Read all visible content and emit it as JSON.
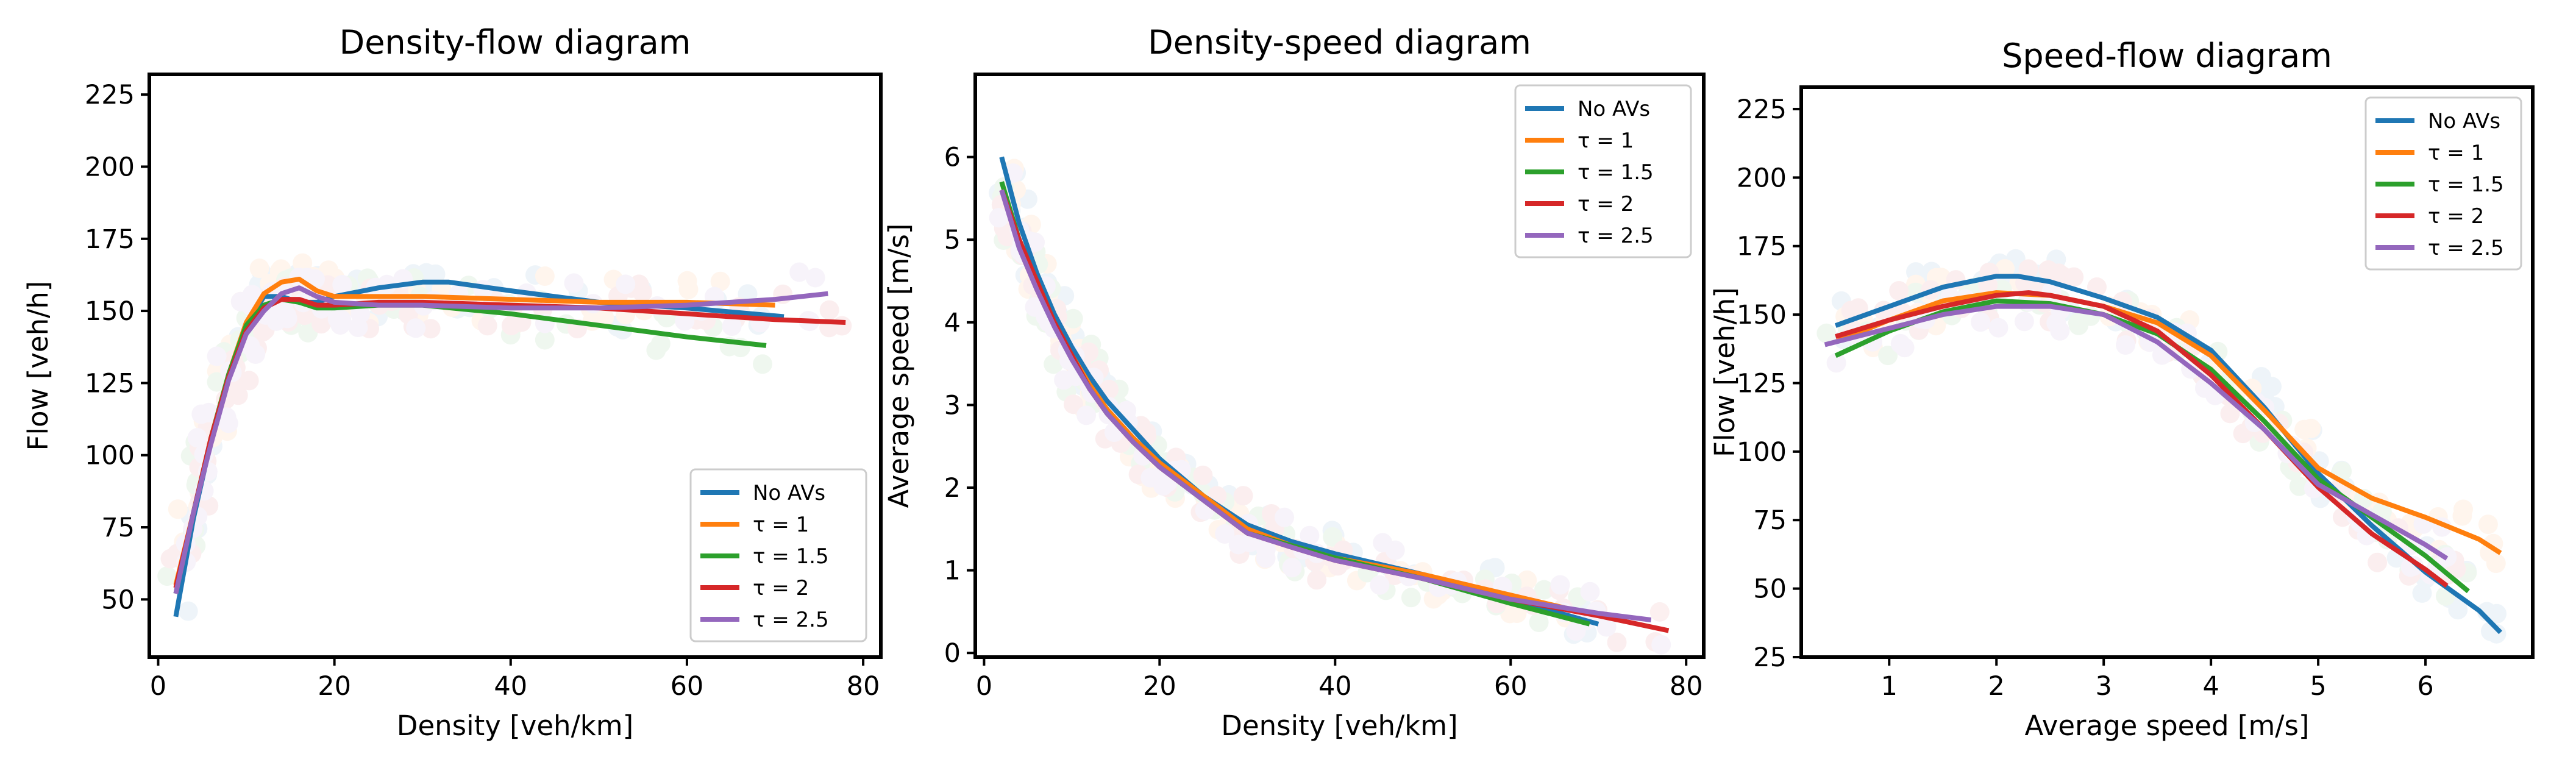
{
  "chart_data": [
    {
      "type": "line",
      "title": "Density-flow diagram",
      "xlabel": "Density [veh/km]",
      "ylabel": "Flow [veh/h]",
      "xlim": [
        -1,
        82
      ],
      "ylim": [
        30,
        232
      ],
      "xticks": [
        0,
        20,
        40,
        60,
        80
      ],
      "yticks": [
        50,
        75,
        100,
        125,
        150,
        175,
        200,
        225
      ],
      "legend_loc": "lower-right",
      "series": [
        {
          "name": "No AVs",
          "color": "#1f77b4",
          "x": [
            2,
            4,
            6,
            8,
            10,
            12,
            14,
            16,
            18,
            20,
            25,
            30,
            33,
            40,
            50,
            60,
            71
          ],
          "y": [
            44,
            78,
            105,
            127,
            145,
            155,
            155,
            153,
            153,
            155,
            158,
            160,
            160,
            157,
            153,
            151,
            148
          ]
        },
        {
          "name": "τ = 1",
          "color": "#ff7f0e",
          "x": [
            2,
            4,
            6,
            8,
            10,
            12,
            14,
            16,
            18,
            20,
            25,
            30,
            40,
            50,
            60,
            70
          ],
          "y": [
            55,
            80,
            106,
            128,
            146,
            156,
            160,
            161,
            157,
            155,
            155,
            155,
            154,
            153,
            153,
            152
          ]
        },
        {
          "name": "τ = 1.5",
          "color": "#2ca02c",
          "x": [
            2,
            4,
            6,
            8,
            10,
            12,
            14,
            16,
            18,
            20,
            25,
            30,
            40,
            50,
            60,
            69
          ],
          "y": [
            52,
            80,
            106,
            128,
            145,
            152,
            154,
            153,
            151,
            151,
            152,
            152,
            149,
            145,
            141,
            138
          ]
        },
        {
          "name": "τ = 2",
          "color": "#d62728",
          "x": [
            2,
            4,
            6,
            8,
            10,
            12,
            14,
            16,
            18,
            20,
            25,
            30,
            40,
            50,
            60,
            70,
            78
          ],
          "y": [
            54,
            80,
            106,
            127,
            143,
            151,
            154,
            154,
            152,
            152,
            153,
            153,
            152,
            151,
            149,
            147,
            146
          ]
        },
        {
          "name": "τ = 2.5",
          "color": "#9467bd",
          "x": [
            2,
            4,
            6,
            8,
            10,
            12,
            14,
            16,
            18,
            20,
            25,
            30,
            40,
            50,
            60,
            70,
            76
          ],
          "y": [
            52,
            80,
            104,
            126,
            142,
            150,
            156,
            158,
            155,
            153,
            152,
            152,
            151,
            151,
            152,
            154,
            156
          ]
        }
      ]
    },
    {
      "type": "line",
      "title": "Density-speed diagram",
      "xlabel": "Density [veh/km]",
      "ylabel": "Average speed [m/s]",
      "xlim": [
        -1,
        82
      ],
      "ylim": [
        -0.05,
        7.0
      ],
      "xticks": [
        0,
        20,
        40,
        60,
        80
      ],
      "yticks": [
        0,
        1,
        2,
        3,
        4,
        5,
        6
      ],
      "legend_loc": "upper-right",
      "series": [
        {
          "name": "No AVs",
          "color": "#1f77b4",
          "x": [
            2,
            4,
            6,
            8,
            10,
            12,
            14,
            17,
            20,
            25,
            30,
            35,
            40,
            50,
            60,
            70
          ],
          "y": [
            6.0,
            5.2,
            4.6,
            4.1,
            3.7,
            3.35,
            3.05,
            2.7,
            2.35,
            1.9,
            1.55,
            1.35,
            1.2,
            0.95,
            0.65,
            0.35
          ]
        },
        {
          "name": "τ = 1",
          "color": "#ff7f0e",
          "x": [
            2,
            4,
            6,
            8,
            10,
            12,
            14,
            17,
            20,
            25,
            30,
            35,
            40,
            50,
            60,
            70
          ],
          "y": [
            5.6,
            5.0,
            4.5,
            4.0,
            3.6,
            3.25,
            2.95,
            2.6,
            2.3,
            1.9,
            1.5,
            1.3,
            1.15,
            0.95,
            0.7,
            0.45
          ]
        },
        {
          "name": "τ = 1.5",
          "color": "#2ca02c",
          "x": [
            2,
            4,
            6,
            8,
            10,
            12,
            14,
            17,
            20,
            25,
            30,
            35,
            40,
            50,
            60,
            69
          ],
          "y": [
            5.7,
            5.0,
            4.5,
            4.0,
            3.6,
            3.2,
            2.9,
            2.55,
            2.25,
            1.85,
            1.45,
            1.3,
            1.15,
            0.9,
            0.6,
            0.35
          ]
        },
        {
          "name": "τ = 2",
          "color": "#d62728",
          "x": [
            2,
            4,
            6,
            8,
            10,
            12,
            14,
            17,
            20,
            25,
            30,
            35,
            40,
            50,
            60,
            70,
            78
          ],
          "y": [
            5.6,
            5.0,
            4.5,
            4.0,
            3.6,
            3.2,
            2.9,
            2.55,
            2.25,
            1.85,
            1.45,
            1.28,
            1.12,
            0.9,
            0.65,
            0.45,
            0.27
          ]
        },
        {
          "name": "τ = 2.5",
          "color": "#9467bd",
          "x": [
            2,
            4,
            6,
            8,
            10,
            12,
            14,
            17,
            20,
            25,
            30,
            35,
            40,
            50,
            60,
            70,
            76
          ],
          "y": [
            5.6,
            4.9,
            4.4,
            3.95,
            3.55,
            3.2,
            2.9,
            2.55,
            2.25,
            1.85,
            1.45,
            1.28,
            1.12,
            0.9,
            0.65,
            0.48,
            0.4
          ]
        }
      ]
    },
    {
      "type": "line",
      "title": "Speed-flow diagram",
      "xlabel": "Average speed [m/s]",
      "ylabel": "Flow [veh/h]",
      "xlim": [
        0.18,
        7.0
      ],
      "ylim": [
        25,
        233
      ],
      "xticks": [
        1,
        2,
        3,
        4,
        5,
        6
      ],
      "yticks": [
        25,
        50,
        75,
        100,
        125,
        150,
        175,
        200,
        225
      ],
      "legend_loc": "upper-right",
      "series": [
        {
          "name": "No AVs",
          "color": "#1f77b4",
          "x": [
            0.5,
            1.0,
            1.5,
            2.0,
            2.2,
            2.5,
            3.0,
            3.5,
            4.0,
            4.5,
            5.0,
            5.5,
            6.0,
            6.5,
            6.7
          ],
          "y": [
            146,
            153,
            160,
            164,
            164,
            162,
            156,
            149,
            137,
            116,
            92,
            73,
            56,
            42,
            34
          ]
        },
        {
          "name": "τ = 1",
          "color": "#ff7f0e",
          "x": [
            0.5,
            1.0,
            1.5,
            2.0,
            2.5,
            3.0,
            3.5,
            4.0,
            4.5,
            5.0,
            5.5,
            6.0,
            6.5,
            6.7
          ],
          "y": [
            140,
            148,
            155,
            158,
            157,
            153,
            147,
            135,
            115,
            94,
            83,
            76,
            68,
            63
          ]
        },
        {
          "name": "τ = 1.5",
          "color": "#2ca02c",
          "x": [
            0.5,
            1.0,
            1.5,
            2.0,
            2.5,
            3.0,
            3.5,
            4.0,
            4.5,
            5.0,
            5.5,
            6.0,
            6.4
          ],
          "y": [
            135,
            144,
            151,
            155,
            154,
            150,
            143,
            130,
            111,
            90,
            76,
            62,
            49
          ]
        },
        {
          "name": "τ = 2",
          "color": "#d62728",
          "x": [
            0.5,
            1.0,
            1.5,
            2.0,
            2.3,
            2.5,
            3.0,
            3.5,
            4.0,
            4.5,
            5.0,
            5.5,
            6.0,
            6.2
          ],
          "y": [
            142,
            148,
            153,
            157,
            158,
            157,
            153,
            144,
            128,
            108,
            87,
            70,
            57,
            51
          ]
        },
        {
          "name": "τ = 2.5",
          "color": "#9467bd",
          "x": [
            0.4,
            1.0,
            1.5,
            2.0,
            2.5,
            3.0,
            3.5,
            4.0,
            4.5,
            5.0,
            5.5,
            6.0,
            6.2
          ],
          "y": [
            139,
            145,
            150,
            153,
            153,
            150,
            140,
            125,
            108,
            88,
            77,
            66,
            61
          ]
        }
      ]
    }
  ]
}
